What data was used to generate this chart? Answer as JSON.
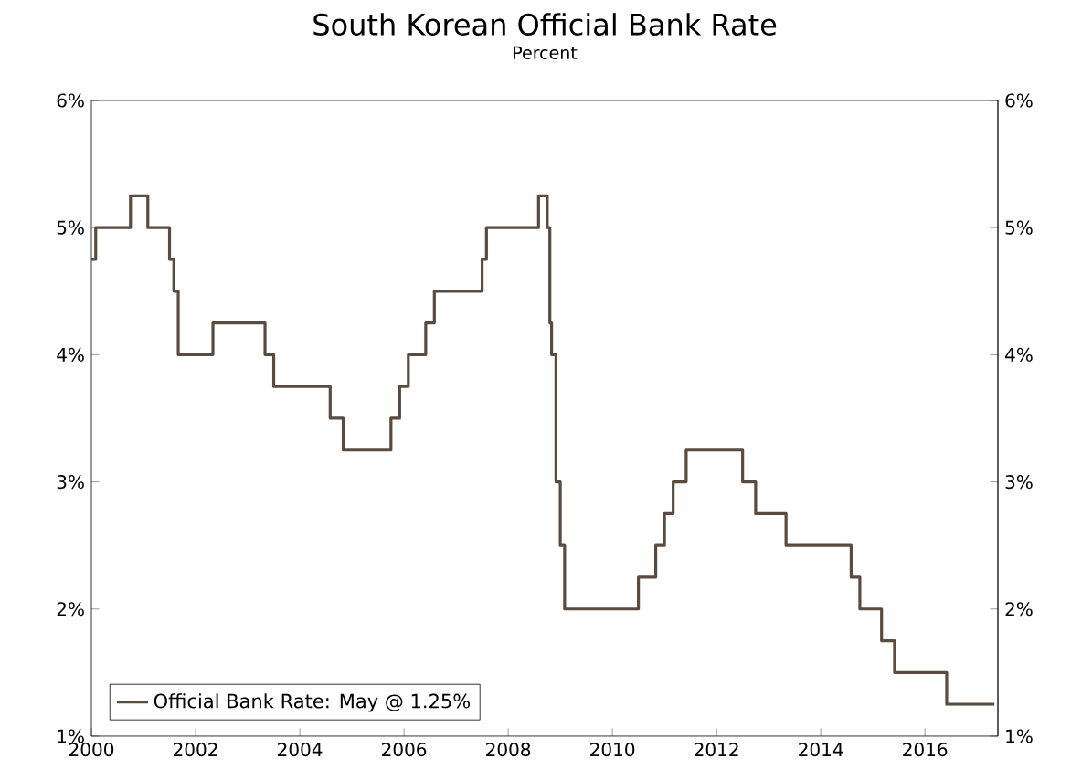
{
  "chart_data": {
    "type": "step",
    "title": "South Korean Official Bank Rate",
    "subtitle": "Percent",
    "xlim": [
      2000,
      2017.4
    ],
    "xticks": [
      2000,
      2002,
      2004,
      2006,
      2008,
      2010,
      2012,
      2014,
      2016
    ],
    "ylim": [
      1,
      6
    ],
    "yticks": [
      {
        "value": 1,
        "label": "1%"
      },
      {
        "value": 2,
        "label": "2%"
      },
      {
        "value": 3,
        "label": "3%"
      },
      {
        "value": 4,
        "label": "4%"
      },
      {
        "value": 5,
        "label": "5%"
      },
      {
        "value": 6,
        "label": "6%"
      }
    ],
    "y2lim": [
      1,
      6
    ],
    "y2ticks": [
      {
        "value": 1,
        "label": "1%"
      },
      {
        "value": 2,
        "label": "2%"
      },
      {
        "value": 3,
        "label": "3%"
      },
      {
        "value": 4,
        "label": "4%"
      },
      {
        "value": 5,
        "label": "5%"
      },
      {
        "value": 6,
        "label": "6%"
      }
    ],
    "legend": "bottom left",
    "line_style": "solid",
    "series": [
      {
        "name": "Official Bank Rate: May @ 1.25%",
        "color": "#5b4b3f",
        "x": [
          2000.0,
          2000.083,
          2000.75,
          2001.083,
          2001.5,
          2001.583,
          2001.667,
          2002.333,
          2003.333,
          2003.5,
          2004.583,
          2004.833,
          2005.75,
          2005.917,
          2006.083,
          2006.417,
          2006.583,
          2007.5,
          2007.583,
          2008.583,
          2008.75,
          2008.8,
          2008.833,
          2008.917,
          2009.0,
          2009.083,
          2010.5,
          2010.833,
          2011.0,
          2011.167,
          2011.417,
          2012.5,
          2012.75,
          2013.333,
          2014.583,
          2014.75,
          2015.167,
          2015.417,
          2016.417,
          2017.333
        ],
        "values": [
          4.75,
          5.0,
          5.25,
          5.0,
          4.75,
          4.5,
          4.0,
          4.25,
          4.0,
          3.75,
          3.5,
          3.25,
          3.5,
          3.75,
          4.0,
          4.25,
          4.5,
          4.75,
          5.0,
          5.25,
          5.0,
          4.25,
          4.0,
          3.0,
          2.5,
          2.0,
          2.25,
          2.5,
          2.75,
          3.0,
          3.25,
          3.0,
          2.75,
          2.5,
          2.25,
          2.0,
          1.75,
          1.5,
          1.25,
          1.25
        ]
      }
    ]
  }
}
